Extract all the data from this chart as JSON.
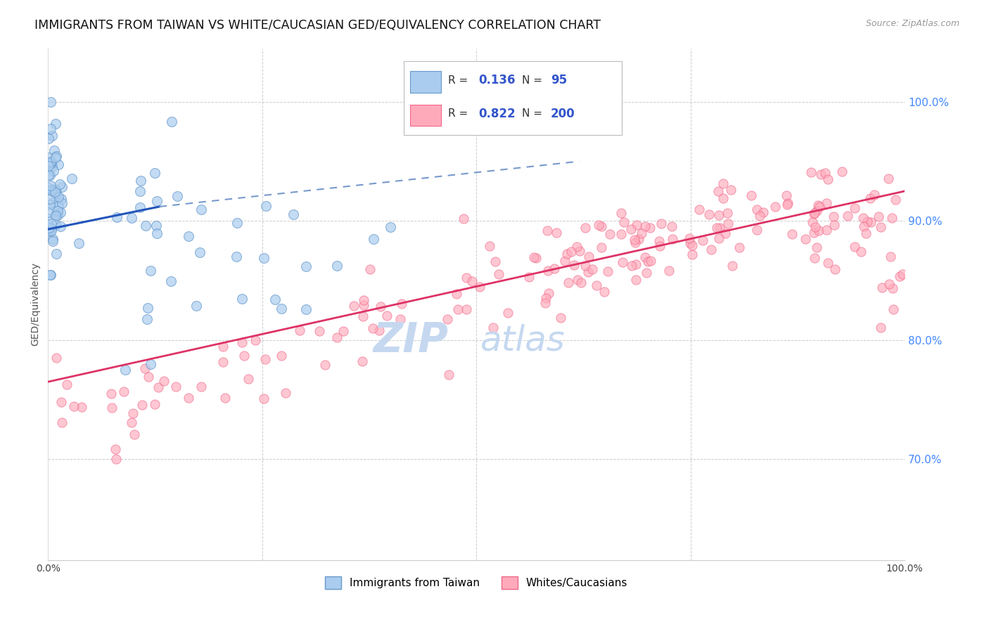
{
  "title": "IMMIGRANTS FROM TAIWAN VS WHITE/CAUCASIAN GED/EQUIVALENCY CORRELATION CHART",
  "source": "Source: ZipAtlas.com",
  "ylabel": "GED/Equivalency",
  "ytick_labels": [
    "100.0%",
    "90.0%",
    "80.0%",
    "70.0%"
  ],
  "ytick_values": [
    1.0,
    0.9,
    0.8,
    0.7
  ],
  "xlim": [
    0.0,
    1.0
  ],
  "ylim": [
    0.615,
    1.045
  ],
  "taiwan_R": 0.136,
  "taiwan_N": 95,
  "white_R": 0.822,
  "white_N": 200,
  "taiwan_color": "#6699cc",
  "taiwan_fill": "#aaccee",
  "white_color": "#ee6688",
  "white_fill": "#ffaabb",
  "taiwan_trend_color": "#2255bb",
  "white_trend_color": "#dd3366",
  "dashed_extension_color": "#7799cc",
  "watermark_color": "#c5d8f0",
  "background_color": "#ffffff",
  "grid_color": "#cccccc",
  "tick_label_color_right": "#4488ff",
  "legend_box_edge": "#bbbbbb"
}
